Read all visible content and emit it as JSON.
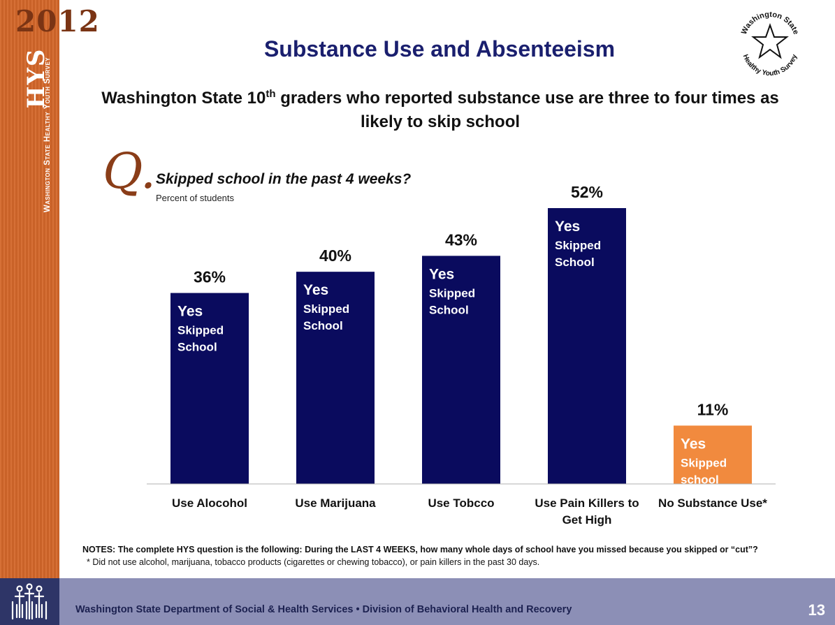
{
  "sidebar": {
    "year": "2012",
    "abbrev": "HYS",
    "survey_name": "Washington State Healthy Youth Survey"
  },
  "logo": {
    "icon": "star-icon",
    "top_text": "Washington State",
    "bottom_text": "Healthy Youth Survey"
  },
  "slide": {
    "title": "Substance Use and Absenteeism",
    "subtitle_part1": "Washington State 10",
    "subtitle_sup": "th",
    "subtitle_part2": " graders who reported substance use are three to four times as likely to skip school",
    "q_mark": "Q.",
    "question": "Skipped school in the past 4 weeks?",
    "unit_note": "Percent of students"
  },
  "chart_data": {
    "type": "bar",
    "title": "Skipped school in the past 4 weeks?",
    "ylabel": "Percent of students",
    "ylim": [
      0,
      56
    ],
    "grid": false,
    "legend": "none",
    "categories": [
      [
        "Use Alocohol"
      ],
      [
        "Use Marijuana"
      ],
      [
        "Use Tobcco"
      ],
      [
        "Use Pain Killers to",
        "Get High"
      ],
      [
        "No Substance Use*"
      ]
    ],
    "values": [
      36,
      40,
      43,
      52,
      11
    ],
    "value_labels": [
      "36%",
      "40%",
      "43%",
      "52%",
      "11%"
    ],
    "bar_labels": [
      [
        "Yes",
        "Skipped",
        "School"
      ],
      [
        "Yes",
        "Skipped",
        "School"
      ],
      [
        "Yes",
        "Skipped",
        "School"
      ],
      [
        "Yes",
        "Skipped",
        "School"
      ],
      [
        "Yes",
        "Skipped",
        "school"
      ]
    ],
    "colors": [
      "#0a0b5e",
      "#0a0b5e",
      "#0a0b5e",
      "#0a0b5e",
      "#f18a3e"
    ]
  },
  "notes": {
    "main": "NOTES: The complete HYS question is the following: During the LAST 4 WEEKS, how many whole days of school have you missed because you skipped or “cut”?",
    "footnote": "* Did not use alcohol, marijuana, tobacco products (cigarettes or chewing tobacco), or pain killers in the past 30 days."
  },
  "footer": {
    "icon": "people-icon",
    "org": "Washington State Department of Social & Health Services • Division of Behavioral Health and Recovery",
    "page": "13"
  }
}
